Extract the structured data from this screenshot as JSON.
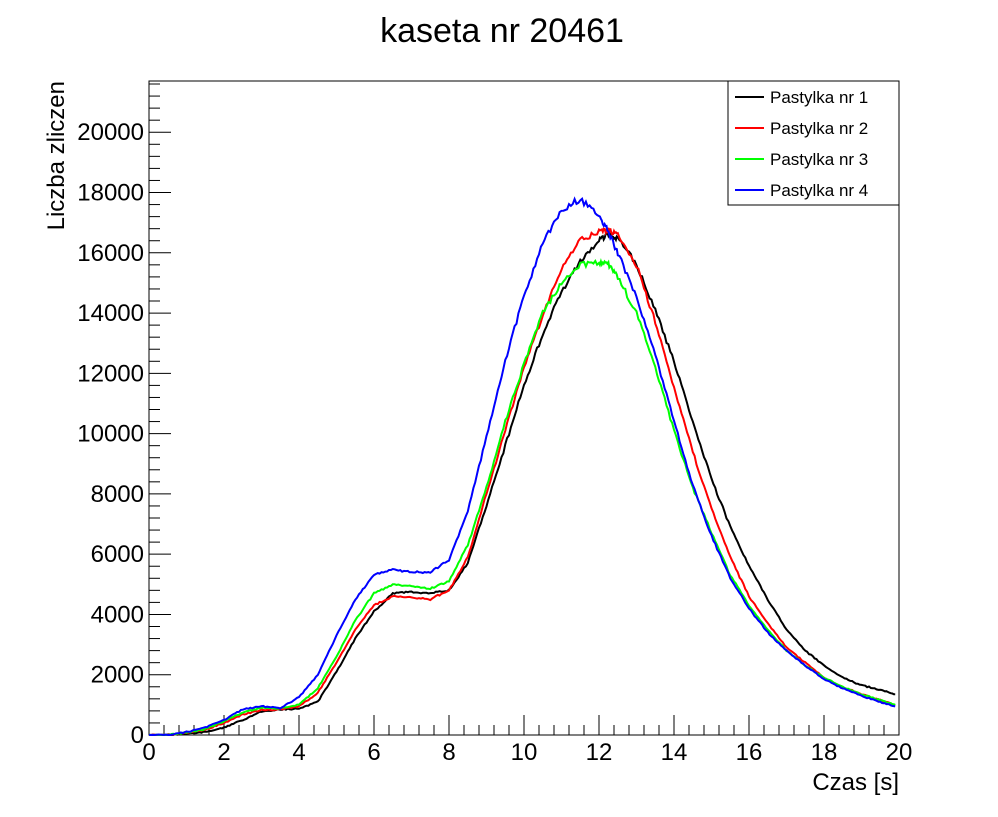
{
  "chart_data": {
    "type": "line",
    "title": "kaseta nr 20461",
    "xlabel": "Czas [s]",
    "ylabel": "Liczba zliczen",
    "xlim": [
      0,
      20
    ],
    "ylim": [
      0,
      21700
    ],
    "xticks": [
      0,
      2,
      4,
      6,
      8,
      10,
      12,
      14,
      16,
      18,
      20
    ],
    "yticks": [
      0,
      2000,
      4000,
      6000,
      8000,
      10000,
      12000,
      14000,
      16000,
      18000,
      20000
    ],
    "grid": false,
    "legend_position": "top-right",
    "series": [
      {
        "name": "Pastylka nr 1",
        "color": "#000000",
        "x": [
          0,
          0.5,
          1,
          1.5,
          2,
          2.5,
          3,
          3.5,
          4,
          4.5,
          5,
          5.5,
          6,
          6.5,
          7,
          7.5,
          8,
          8.5,
          9,
          9.5,
          10,
          10.5,
          11,
          11.5,
          12,
          12.25,
          12.5,
          13,
          13.5,
          14,
          14.5,
          15,
          15.5,
          16,
          16.5,
          17,
          17.5,
          18,
          18.5,
          19,
          19.5,
          19.9
        ],
        "values": [
          0,
          0,
          50,
          100,
          250,
          500,
          780,
          850,
          870,
          1100,
          2100,
          3200,
          4100,
          4700,
          4750,
          4700,
          4800,
          5700,
          7600,
          9600,
          11600,
          13300,
          14700,
          15700,
          16400,
          16600,
          16500,
          15600,
          14100,
          12400,
          10400,
          8500,
          6900,
          5600,
          4500,
          3500,
          2800,
          2300,
          1900,
          1650,
          1500,
          1350
        ]
      },
      {
        "name": "Pastylka nr 2",
        "color": "#ff0000",
        "x": [
          0,
          0.5,
          1,
          1.5,
          2,
          2.5,
          3,
          3.5,
          4,
          4.5,
          5,
          5.5,
          6,
          6.5,
          7,
          7.5,
          8,
          8.5,
          9,
          9.5,
          10,
          10.5,
          11,
          11.5,
          12,
          12.25,
          12.5,
          13,
          13.5,
          14,
          14.5,
          15,
          15.5,
          16,
          16.5,
          17,
          17.5,
          18,
          18.5,
          19,
          19.5,
          19.9
        ],
        "values": [
          0,
          0,
          80,
          180,
          400,
          680,
          830,
          850,
          950,
          1400,
          2400,
          3500,
          4300,
          4600,
          4550,
          4500,
          4800,
          5900,
          8000,
          10100,
          12200,
          13900,
          15500,
          16400,
          16700,
          16750,
          16600,
          15600,
          13700,
          11500,
          9400,
          7500,
          5900,
          4600,
          3700,
          2900,
          2400,
          1900,
          1600,
          1350,
          1150,
          1000
        ]
      },
      {
        "name": "Pastylka nr 3",
        "color": "#00ff00",
        "x": [
          0,
          0.5,
          1,
          1.5,
          2,
          2.5,
          3,
          3.5,
          4,
          4.5,
          5,
          5.5,
          6,
          6.5,
          7,
          7.5,
          8,
          8.5,
          9,
          9.5,
          10,
          10.5,
          11,
          11.5,
          12,
          12.25,
          12.5,
          13,
          13.5,
          14,
          14.5,
          15,
          15.5,
          16,
          16.5,
          17,
          17.5,
          18,
          18.5,
          19,
          19.5,
          19.9
        ],
        "values": [
          0,
          0,
          80,
          200,
          450,
          750,
          900,
          880,
          1000,
          1550,
          2600,
          3800,
          4700,
          5000,
          4950,
          4850,
          5100,
          6300,
          8200,
          10400,
          12300,
          14000,
          15000,
          15600,
          15700,
          15600,
          15200,
          14000,
          12200,
          10100,
          8200,
          6700,
          5300,
          4300,
          3500,
          2800,
          2300,
          1900,
          1600,
          1350,
          1150,
          1000
        ]
      },
      {
        "name": "Pastylka nr 4",
        "color": "#0000ff",
        "x": [
          0,
          0.5,
          1,
          1.5,
          2,
          2.5,
          3,
          3.5,
          4,
          4.5,
          5,
          5.5,
          6,
          6.5,
          7,
          7.5,
          8,
          8.5,
          9,
          9.5,
          10,
          10.5,
          11,
          11.5,
          12,
          12.25,
          12.5,
          13,
          13.5,
          14,
          14.5,
          15,
          15.5,
          16,
          16.5,
          17,
          17.5,
          18,
          18.5,
          19,
          19.5,
          19.9
        ],
        "values": [
          0,
          0,
          100,
          250,
          500,
          850,
          950,
          900,
          1250,
          2000,
          3300,
          4500,
          5300,
          5500,
          5400,
          5400,
          5800,
          7400,
          9900,
          12400,
          14600,
          16300,
          17400,
          17800,
          17200,
          16700,
          16000,
          14500,
          12600,
          10400,
          8300,
          6600,
          5200,
          4200,
          3400,
          2800,
          2300,
          1850,
          1550,
          1300,
          1100,
          950
        ]
      }
    ]
  }
}
